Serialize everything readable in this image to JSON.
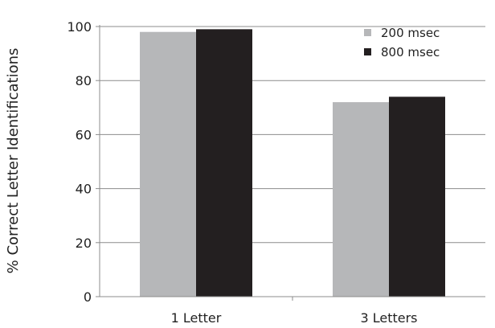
{
  "chart_data": {
    "type": "bar",
    "title": "",
    "xlabel": "",
    "ylabel": "% Correct Letter Identifications",
    "categories": [
      "1 Letter",
      "3 Letters"
    ],
    "series": [
      {
        "name": "200 msec",
        "values": [
          98,
          72
        ],
        "color": "#b6b7b9"
      },
      {
        "name": "800 msec",
        "values": [
          99,
          74
        ],
        "color": "#231f20"
      }
    ],
    "ylim": [
      0,
      100
    ],
    "yticks": [
      0,
      20,
      40,
      60,
      80,
      100
    ],
    "grid": true,
    "legend": "top-right"
  }
}
